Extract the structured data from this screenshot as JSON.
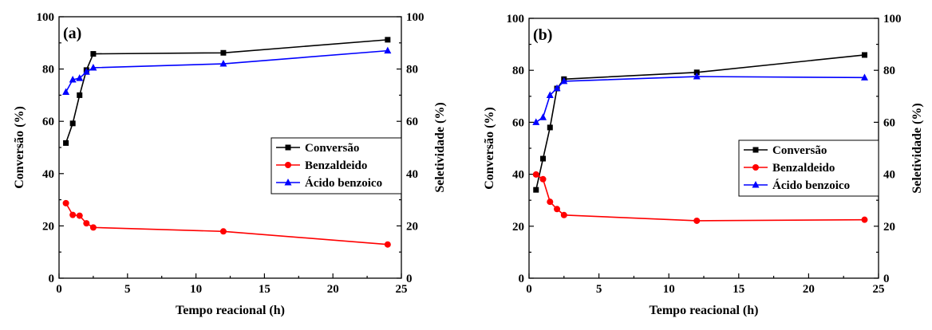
{
  "chart_data": [
    {
      "type": "line",
      "panel_label": "(a)",
      "xlabel": "Tempo reacional (h)",
      "ylabel_left": "Conversão (%)",
      "ylabel_right": "Seletividade (%)",
      "xlim": [
        0,
        25
      ],
      "ylim_left": [
        0,
        100
      ],
      "ylim_right": [
        0,
        100
      ],
      "x_ticks": [
        0,
        5,
        10,
        15,
        20,
        25
      ],
      "y_ticks": [
        0,
        20,
        40,
        60,
        80,
        100
      ],
      "grid": false,
      "legend_position": "center-right",
      "x": [
        0.5,
        1,
        1.5,
        2,
        2.5,
        12,
        24
      ],
      "series": [
        {
          "name": "Conversão",
          "axis": "left",
          "color": "#000000",
          "marker": "square",
          "values": [
            51.7,
            59.2,
            70.0,
            79.6,
            85.8,
            86.2,
            91.2
          ]
        },
        {
          "name": "Benzaldeido",
          "axis": "right",
          "color": "#ff0000",
          "marker": "circle",
          "values": [
            28.7,
            24.2,
            23.9,
            21.0,
            19.4,
            17.9,
            12.9
          ]
        },
        {
          "name": "Ácido benzoico",
          "axis": "right",
          "color": "#0000ff",
          "marker": "triangle",
          "values": [
            71.2,
            75.9,
            76.5,
            78.9,
            80.5,
            82.0,
            87.0
          ]
        }
      ]
    },
    {
      "type": "line",
      "panel_label": "(b)",
      "xlabel": "Tempo reacional (h)",
      "ylabel_left": "Conversão (%)",
      "ylabel_right": "Seletividade (%)",
      "xlim": [
        0,
        25
      ],
      "ylim_left": [
        0,
        100
      ],
      "ylim_right": [
        0,
        100
      ],
      "x_ticks": [
        0,
        5,
        10,
        15,
        20,
        25
      ],
      "y_ticks": [
        0,
        20,
        40,
        60,
        80,
        100
      ],
      "grid": false,
      "legend_position": "center-right",
      "x": [
        0.5,
        1,
        1.5,
        2,
        2.5,
        12,
        24
      ],
      "series": [
        {
          "name": "Conversão",
          "axis": "left",
          "color": "#000000",
          "marker": "square",
          "values": [
            34.0,
            46.0,
            58.0,
            73.0,
            76.6,
            79.2,
            85.9
          ]
        },
        {
          "name": "Benzaldeido",
          "axis": "right",
          "color": "#ff0000",
          "marker": "circle",
          "values": [
            39.9,
            38.1,
            29.4,
            26.6,
            24.3,
            22.1,
            22.5
          ]
        },
        {
          "name": "Ácido benzoico",
          "axis": "right",
          "color": "#0000ff",
          "marker": "triangle",
          "values": [
            60.0,
            61.9,
            70.4,
            73.1,
            75.8,
            77.6,
            77.2
          ]
        }
      ]
    }
  ]
}
